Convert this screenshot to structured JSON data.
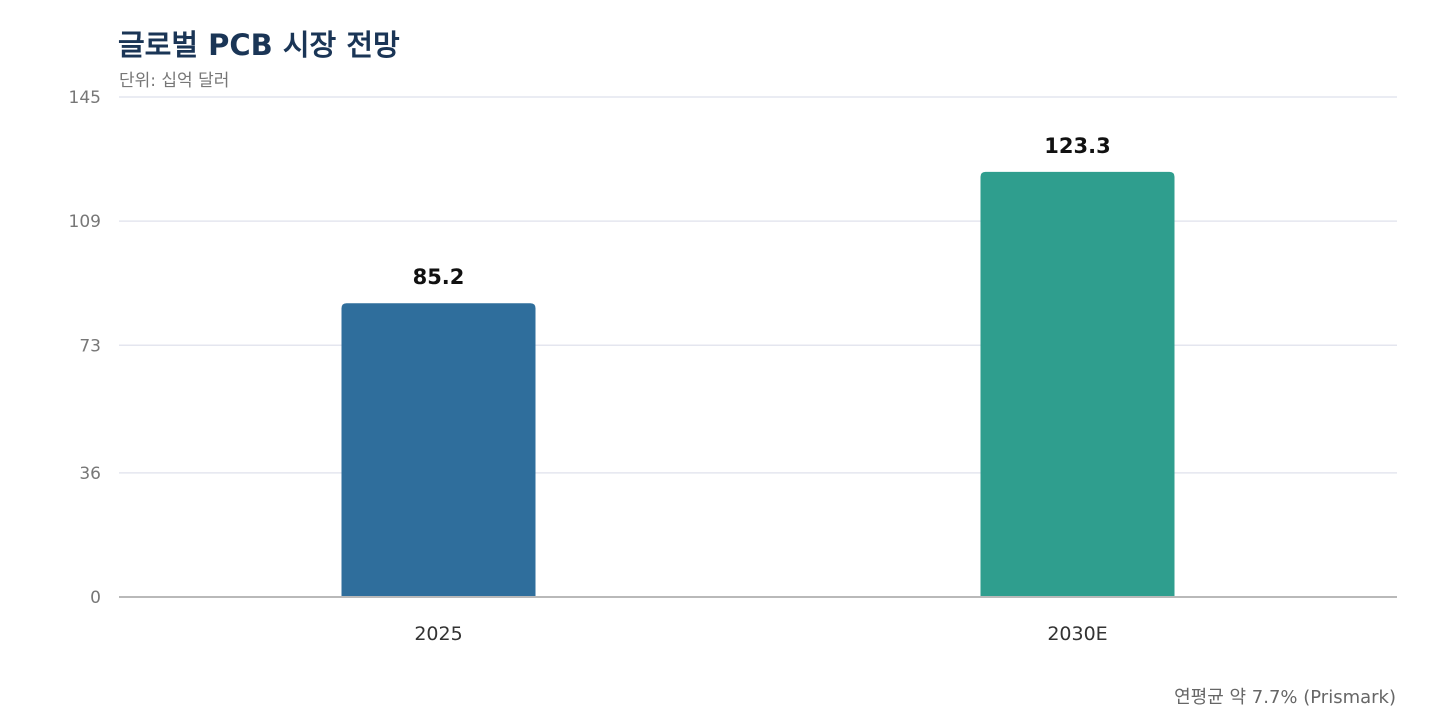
{
  "chart_data": {
    "type": "bar",
    "title": "글로벌 PCB 시장 전망",
    "subtitle": "단위: 십억 달러",
    "categories": [
      "2025",
      "2030E"
    ],
    "values": [
      85.2,
      123.3
    ],
    "data_labels": [
      "85.2",
      "123.3"
    ],
    "bar_colors": [
      "#2f6e9c",
      "#2f9e8e"
    ],
    "ylim": [
      0,
      145
    ],
    "yticks": [
      0,
      36,
      73,
      109,
      145
    ],
    "ytick_labels": [
      "0",
      "36",
      "73",
      "109",
      "145"
    ],
    "grid": true,
    "grid_color": "#e4e6ef",
    "axis_color": "#b9b9b9",
    "footnote": "연평균 약 7.7% (Prismark)"
  }
}
